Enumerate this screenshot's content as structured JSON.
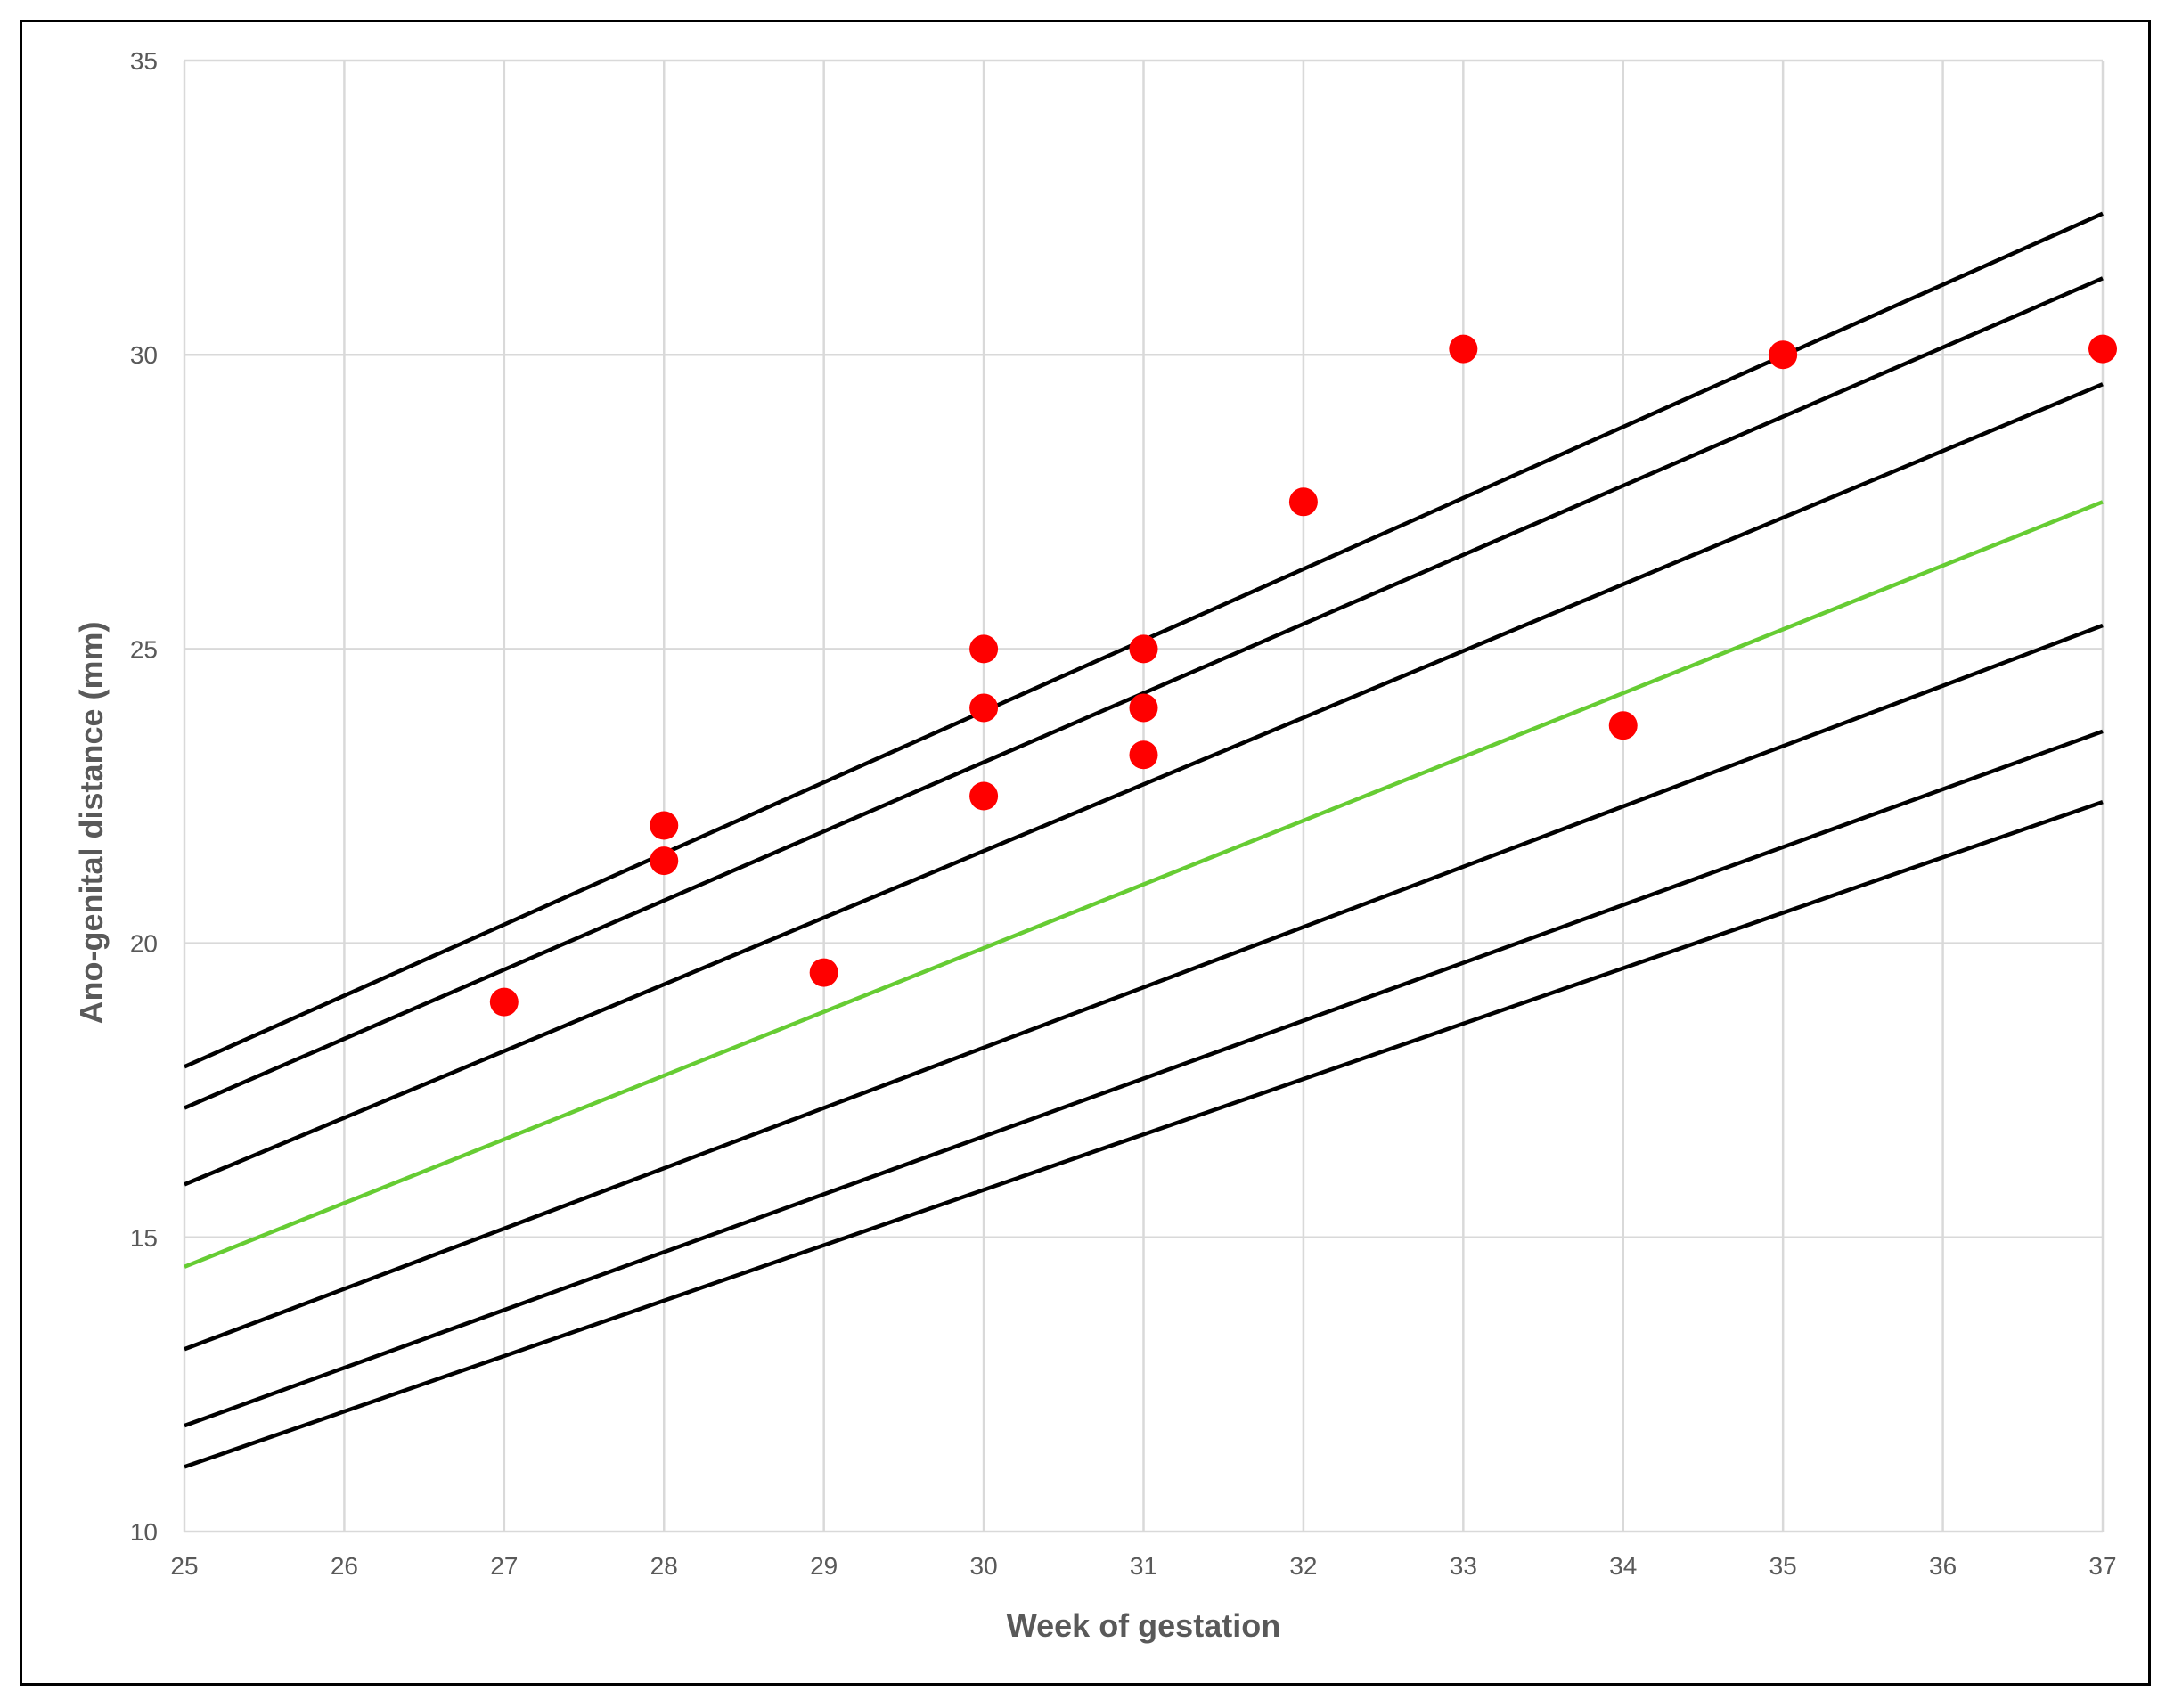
{
  "chart_data": {
    "type": "scatter",
    "title": "",
    "xlabel": "Week of gestation",
    "ylabel": "Ano-genital distance (mm)",
    "xlim": [
      25,
      37
    ],
    "ylim": [
      10,
      35
    ],
    "x_ticks": [
      25,
      26,
      27,
      28,
      29,
      30,
      31,
      32,
      33,
      34,
      35,
      36,
      37
    ],
    "y_ticks": [
      10,
      15,
      20,
      25,
      30,
      35
    ],
    "grid": true,
    "legend": "none",
    "points": [
      {
        "x": 27,
        "y": 19.0
      },
      {
        "x": 28,
        "y": 22.0
      },
      {
        "x": 28,
        "y": 21.4
      },
      {
        "x": 29,
        "y": 19.5
      },
      {
        "x": 30,
        "y": 25.0
      },
      {
        "x": 30,
        "y": 24.0
      },
      {
        "x": 30,
        "y": 22.5
      },
      {
        "x": 31,
        "y": 25.0
      },
      {
        "x": 31,
        "y": 24.0
      },
      {
        "x": 31,
        "y": 23.2
      },
      {
        "x": 32,
        "y": 27.5
      },
      {
        "x": 33,
        "y": 30.1
      },
      {
        "x": 34,
        "y": 23.7
      },
      {
        "x": 35,
        "y": 30.0
      },
      {
        "x": 37,
        "y": 30.1
      }
    ],
    "lines": [
      {
        "x": [
          25,
          37
        ],
        "y": [
          17.9,
          32.4
        ],
        "color": "#000000"
      },
      {
        "x": [
          25,
          37
        ],
        "y": [
          17.2,
          31.3
        ],
        "color": "#000000"
      },
      {
        "x": [
          25,
          37
        ],
        "y": [
          15.9,
          29.5
        ],
        "color": "#000000"
      },
      {
        "x": [
          25,
          37
        ],
        "y": [
          14.5,
          27.5
        ],
        "color": "#66CC33"
      },
      {
        "x": [
          25,
          37
        ],
        "y": [
          13.1,
          25.4
        ],
        "color": "#000000"
      },
      {
        "x": [
          25,
          37
        ],
        "y": [
          11.8,
          23.6
        ],
        "color": "#000000"
      },
      {
        "x": [
          25,
          37
        ],
        "y": [
          11.1,
          22.4
        ],
        "color": "#000000"
      }
    ],
    "colors": {
      "points": "#FF0000",
      "grid": "#D9D9D9",
      "ticks": "#595959"
    }
  }
}
